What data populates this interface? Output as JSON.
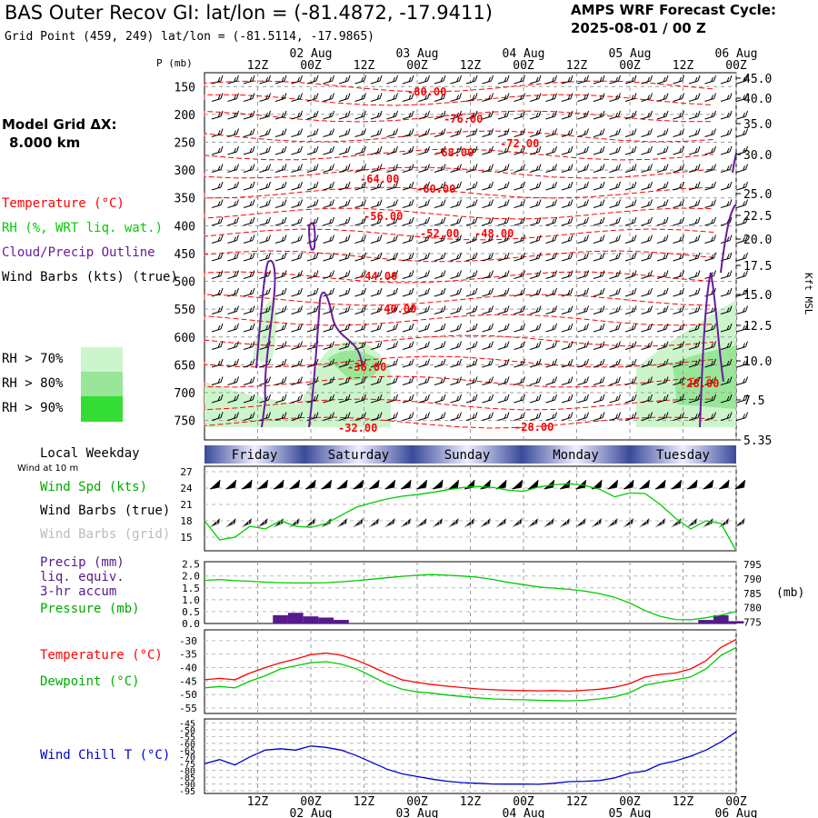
{
  "header": {
    "title": "BAS Outer Recov GI:  lat/lon = (-81.4872, -17.9411)",
    "subtitle": "Grid Point (459, 249) lat/lon = (-81.5114, -17.9865)",
    "cycle_label": "AMPS WRF Forecast Cycle:",
    "cycle_value": "2025-08-01 / 00  Z"
  },
  "legend": {
    "model_grid_label": "Model Grid ΔX:",
    "model_grid_value": "8.000 km",
    "temperature": "Temperature (°C)",
    "rh": "RH (%, WRT liq. wat.)",
    "cloud": "Cloud/Precip Outline",
    "wind": "Wind Barbs (kts) (true)",
    "rh70": "RH > 70%",
    "rh80": "RH > 80%",
    "rh90": "RH > 90%",
    "local_weekday": "Local Weekday",
    "wind_10m": "Wind at 10 m",
    "wind_spd": "Wind Spd (kts)",
    "wind_barbs_true": "Wind Barbs (true)",
    "wind_barbs_grid": "Wind Barbs (grid)",
    "precip1": "Precip (mm)",
    "precip2": "liq. equiv.",
    "precip3": "3-hr accum",
    "pressure": "Pressure (mb)",
    "temp2": "Temperature (°C)",
    "dewpoint": "Dewpoint (°C)",
    "windchill": "Wind Chill T (°C)"
  },
  "colors": {
    "temperature": "#ff0000",
    "rh": "#00cc00",
    "cloud": "#6a1b9a",
    "wind": "#000000",
    "grid_barbs": "#aaaaaa",
    "precip": "#551a8b",
    "windchill": "#0000cc",
    "rh70": "#ccf5cc",
    "rh80": "#99e699",
    "rh90": "#33dd33"
  },
  "time_axis": {
    "hour_labels": [
      "12Z",
      "00Z",
      "12Z",
      "00Z",
      "12Z",
      "00Z",
      "12Z",
      "00Z",
      "12Z",
      "00Z"
    ],
    "date_labels": [
      "02 Aug",
      "03 Aug",
      "04 Aug",
      "05 Aug",
      "06 Aug"
    ],
    "weekdays": [
      "Friday",
      "Saturday",
      "Sunday",
      "Monday",
      "Tuesday"
    ]
  },
  "chart_data": [
    {
      "type": "heatmap",
      "ylabel_left": "P (mb)",
      "ylabel_right": "Kft MSL",
      "pressure_ticks": [
        150,
        200,
        250,
        300,
        350,
        400,
        450,
        500,
        550,
        600,
        650,
        700,
        750
      ],
      "height_ticks": [
        "45.0",
        "40.0",
        "35.0",
        "30.0",
        "25.0",
        "22.5",
        "20.0",
        "17.5",
        "15.0",
        "12.5",
        "10.0",
        "7.5",
        "5.35"
      ],
      "temp_labels": [
        "-80.00",
        "-76.00",
        "-72.00",
        "-68.00",
        "-64.00",
        "-60.00",
        "-56.00",
        "-52.00",
        "-48.00",
        "-44.00",
        "-40.00",
        "-36.00",
        "-32.00",
        "-28.00",
        "-28.00"
      ]
    },
    {
      "type": "line",
      "yticks": [
        27,
        24,
        21,
        18,
        15
      ],
      "series": [
        {
          "values": [
            18,
            14.5,
            15,
            17,
            16.5,
            18,
            17,
            16.8,
            17.5,
            19,
            20.5,
            21.3,
            22,
            22.5,
            22.8,
            23.2,
            23.7,
            24.1,
            24.3,
            24.1,
            23.6,
            23.4,
            24.2,
            24.6,
            24.8,
            24.5,
            23.8,
            22.4,
            23.1,
            23,
            21,
            18.5,
            16.5,
            18,
            17.5,
            12.5
          ]
        }
      ]
    },
    {
      "type": "line",
      "yticks_left": [
        "2.5",
        "2.0",
        "1.5",
        "1.0",
        "0.5",
        "0.0"
      ],
      "yticks_right": [
        795,
        790,
        785,
        780,
        775
      ],
      "series": [
        {
          "values": [
            789.5,
            789.8,
            789.4,
            789.2,
            788.9,
            788.7,
            788.6,
            788.6,
            788.7,
            789.0,
            789.4,
            789.9,
            790.4,
            790.9,
            791.3,
            791.5,
            791.3,
            791.0,
            790.6,
            789.8,
            788.8,
            788.0,
            787.2,
            786.8,
            786.4,
            785.8,
            784.9,
            783.6,
            781.6,
            779.0,
            777.0,
            775.9,
            775.8,
            776.5,
            777.4,
            778.7
          ]
        },
        {
          "values": [
            0,
            0,
            0,
            0,
            0,
            0.35,
            0.45,
            0.3,
            0.25,
            0.15,
            0,
            0,
            0,
            0,
            0,
            0,
            0,
            0,
            0,
            0,
            0,
            0,
            0,
            0,
            0,
            0,
            0,
            0,
            0,
            0,
            0,
            0,
            0,
            0.15,
            0.35,
            0.1
          ]
        }
      ]
    },
    {
      "type": "line",
      "yticks": [
        -30,
        -35,
        -40,
        -45,
        -50,
        -55
      ],
      "series": [
        {
          "values": [
            -44.5,
            -44,
            -44.5,
            -42,
            -40,
            -38.2,
            -36.8,
            -35.2,
            -34.6,
            -35.4,
            -37.2,
            -39.6,
            -42.2,
            -44.5,
            -45.5,
            -46.3,
            -46.9,
            -47.4,
            -47.9,
            -48.2,
            -48.4,
            -48.5,
            -48.6,
            -48.5,
            -48.7,
            -48.4,
            -48,
            -47.3,
            -45.9,
            -43.5,
            -42.5,
            -42,
            -40.5,
            -37.5,
            -32.5,
            -29.5
          ]
        },
        {
          "values": [
            -47.5,
            -47,
            -47.5,
            -45,
            -43,
            -40.5,
            -39.3,
            -38.2,
            -37.8,
            -38.7,
            -40.4,
            -43.2,
            -46,
            -48,
            -49,
            -49.5,
            -50.2,
            -50.7,
            -51.2,
            -51.6,
            -51.8,
            -51.9,
            -52.1,
            -52.2,
            -52.3,
            -52.1,
            -51.6,
            -50.8,
            -49.3,
            -46.5,
            -45.5,
            -44.5,
            -43.5,
            -40.5,
            -35.5,
            -32.5
          ]
        }
      ]
    },
    {
      "type": "line",
      "yticks": [
        -45,
        -50,
        -55,
        -60,
        -65,
        -70,
        -75,
        -80,
        -85,
        -90,
        -95
      ],
      "series": [
        {
          "values": [
            -75,
            -72,
            -76,
            -70,
            -65,
            -64,
            -65,
            -62,
            -63,
            -65,
            -69,
            -74,
            -79,
            -82.5,
            -84.5,
            -86.5,
            -88,
            -89,
            -89.5,
            -90,
            -90.1,
            -90,
            -90.2,
            -89.5,
            -88.3,
            -88,
            -87.5,
            -85.5,
            -82,
            -80.5,
            -75.5,
            -73,
            -69.5,
            -65,
            -59,
            -51.5
          ]
        }
      ]
    }
  ]
}
